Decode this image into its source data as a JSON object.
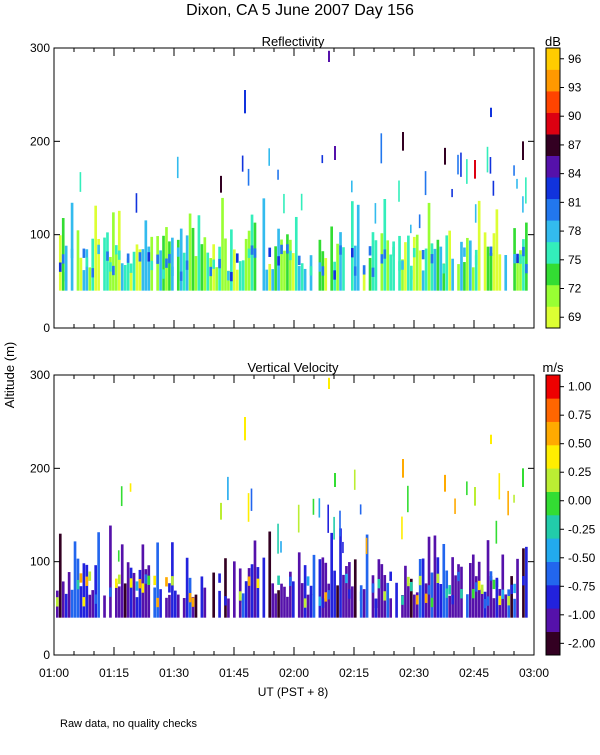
{
  "page": {
    "title": "Dixon, CA  5 June 2007  Day 156",
    "ylabel": "Altitude (m)",
    "xlabel": "UT  (PST + 8)",
    "footnote": "Raw data, no quality checks"
  },
  "chart_data": [
    {
      "type": "heatmap",
      "title": "Reflectivity",
      "units": "dB",
      "x_range": [
        "01:00",
        "03:00"
      ],
      "x_ticks": [
        "01:00",
        "01:15",
        "01:30",
        "01:45",
        "02:00",
        "02:15",
        "02:30",
        "02:45",
        "03:00"
      ],
      "ylim": [
        0,
        300
      ],
      "y_ticks": [
        "0",
        "100",
        "200",
        "300"
      ],
      "colorbar": {
        "labels": [
          "69",
          "72",
          "75",
          "78",
          "81",
          "84",
          "87",
          "90",
          "93",
          "96"
        ],
        "colors": [
          "#ddff33",
          "#99ff33",
          "#33dd33",
          "#33eebb",
          "#33bbee",
          "#2277ee",
          "#1133dd",
          "#5511aa",
          "#330022",
          "#dd0011",
          "#ff4400",
          "#ff9900",
          "#ffcc00"
        ]
      }
    },
    {
      "type": "heatmap",
      "title": "Vertical Velocity",
      "units": "m/s",
      "x_range": [
        "01:00",
        "03:00"
      ],
      "x_ticks": [
        "01:00",
        "01:15",
        "01:30",
        "01:45",
        "02:00",
        "02:15",
        "02:30",
        "02:45",
        "03:00"
      ],
      "ylim": [
        0,
        300
      ],
      "y_ticks": [
        "0",
        "100",
        "200",
        "300"
      ],
      "colorbar": {
        "labels": [
          "-2.00",
          "-1.00",
          "-0.75",
          "-0.50",
          "-0.25",
          "0.00",
          "0.25",
          "0.50",
          "0.75",
          "1.00"
        ],
        "colors": [
          "#330022",
          "#5511aa",
          "#2222dd",
          "#2266ee",
          "#22aaee",
          "#22ccaa",
          "#33dd33",
          "#bbee33",
          "#ffee00",
          "#ffaa00",
          "#ff6600",
          "#ee0000"
        ]
      }
    }
  ]
}
